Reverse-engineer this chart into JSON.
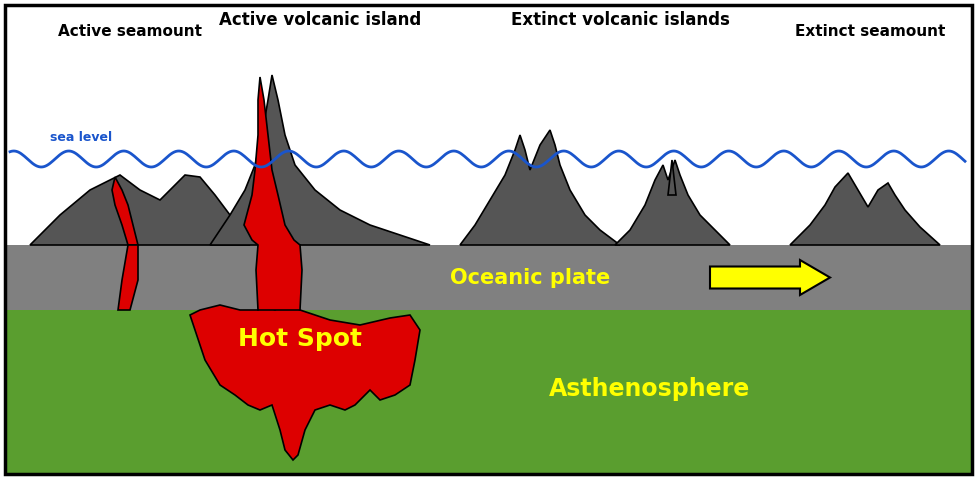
{
  "bg_color": "#ffffff",
  "ocean_plate_color": "#808080",
  "asthenosphere_color": "#5a9e2f",
  "wave_color": "#1a55cc",
  "mountain_color": "#555555",
  "hotspot_color": "#dd0000",
  "arrow_color": "#ffff00",
  "arrow_edge_color": "#000000",
  "text_labels": {
    "active_seamount": "Active seamount",
    "active_volcanic_island": "Active volcanic island",
    "extinct_volcanic_islands": "Extinct volcanic islands",
    "extinct_seamount": "Extinct seamount",
    "sea_level": "sea level",
    "oceanic_plate": "Oceanic plate",
    "asthenosphere": "Asthenosphere",
    "hot_spot": "Hot Spot"
  },
  "fig_width": 9.77,
  "fig_height": 4.79
}
